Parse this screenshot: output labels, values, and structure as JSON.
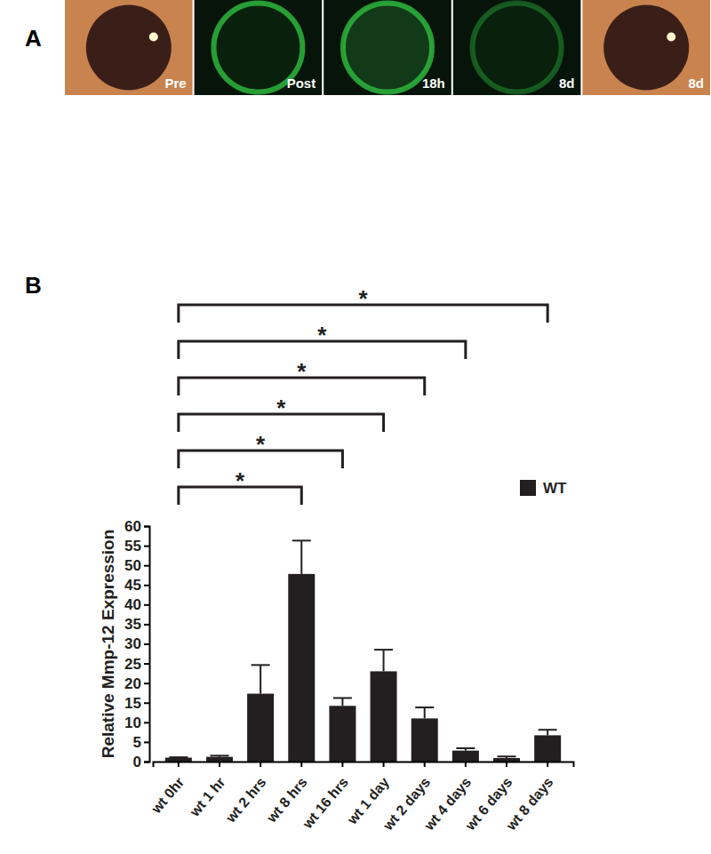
{
  "panels": {
    "a": {
      "label": "A",
      "images": [
        "Pre",
        "Post",
        "18h",
        "8d",
        "8d"
      ]
    },
    "b": {
      "label": "B"
    }
  },
  "chart_data": {
    "type": "bar",
    "y_label": "Relative Mmp-12 Expression",
    "categories": [
      "wt 0hr",
      "wt 1 hr",
      "wt 2 hrs",
      "wt 8 hrs",
      "wt 16 hrs",
      "wt 1 day",
      "wt 2 days",
      "wt 4 days",
      "wt 6 days",
      "wt 8 days"
    ],
    "series": [
      {
        "name": "WT",
        "color": "#231f20",
        "values": [
          1,
          1.2,
          17.3,
          47.8,
          14.2,
          23,
          11,
          2.8,
          0.9,
          6.7
        ],
        "errors": [
          0.1,
          0.3,
          7.3,
          8.5,
          2,
          5.5,
          2.8,
          0.6,
          0.4,
          1.4
        ]
      }
    ],
    "ylim": [
      0,
      60
    ],
    "yticks": [
      0,
      5,
      10,
      15,
      20,
      25,
      30,
      35,
      40,
      45,
      50,
      55,
      60
    ],
    "legend": "upper right",
    "grid": false,
    "annotations": [
      {
        "from": 0,
        "to": 3,
        "label": "*"
      },
      {
        "from": 0,
        "to": 4,
        "label": "*"
      },
      {
        "from": 0,
        "to": 5,
        "label": "*"
      },
      {
        "from": 0,
        "to": 6,
        "label": "*"
      },
      {
        "from": 0,
        "to": 7,
        "label": "*"
      },
      {
        "from": 0,
        "to": 9,
        "label": "*"
      }
    ]
  }
}
